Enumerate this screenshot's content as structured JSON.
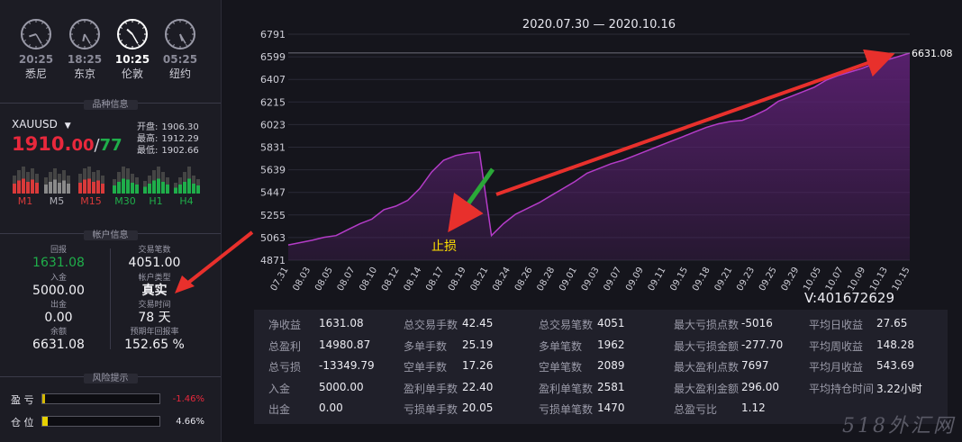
{
  "clocks": [
    {
      "time": "20:25",
      "city": "悉尼"
    },
    {
      "time": "18:25",
      "city": "东京"
    },
    {
      "time": "10:25",
      "city": "伦敦"
    },
    {
      "time": "05:25",
      "city": "纽约"
    }
  ],
  "sections": {
    "instrument": "品种信息",
    "account": "帐户信息",
    "risk": "风险提示"
  },
  "instrument": {
    "symbol": "XAUUSD",
    "bid_int": "1910.",
    "bid_frac": "00",
    "sep": "/",
    "ask": "77",
    "open_label": "开盘:",
    "open": "1906.30",
    "high_label": "最高:",
    "high": "1912.29",
    "low_label": "最低:",
    "low": "1902.66",
    "timeframes": [
      {
        "label": "M1",
        "color": "#d93a3a"
      },
      {
        "label": "M5",
        "color": "#8a8a8a"
      },
      {
        "label": "M15",
        "color": "#d93a3a"
      },
      {
        "label": "M30",
        "color": "#1fae4a"
      },
      {
        "label": "H1",
        "color": "#1fae4a"
      },
      {
        "label": "H4",
        "color": "#1fae4a"
      }
    ]
  },
  "account": {
    "return_label": "回报",
    "return": "1631.08",
    "deposit_label": "入金",
    "deposit": "5000.00",
    "withdraw_label": "出金",
    "withdraw": "0.00",
    "balance_label": "余额",
    "balance": "6631.08",
    "trades_label": "交易笔数",
    "trades": "4051.00",
    "type_label": "帐户类型",
    "type": "真实",
    "time_label": "交易时间",
    "time": "78 天",
    "annual_label": "预期年回报率",
    "annual": "152.65 %"
  },
  "risk": {
    "pnl_label": "盈 亏",
    "pnl_value": "-1.46%",
    "pnl_fill": 0.02,
    "position_label": "仓 位",
    "position_value": "4.66%",
    "position_fill": 0.047
  },
  "chart_data": {
    "type": "area",
    "title": "2020.07.30 — 2020.10.16",
    "yticks": [
      4871,
      5063,
      5255,
      5447,
      5639,
      5831,
      6023,
      6215,
      6407,
      6599,
      6791
    ],
    "ylim": [
      4871,
      6791
    ],
    "xticks": [
      "07.31",
      "08.03",
      "08.05",
      "08.07",
      "08.10",
      "08.12",
      "08.14",
      "08.17",
      "08.19",
      "08.21",
      "08.24",
      "08.26",
      "08.28",
      "09.01",
      "09.03",
      "09.07",
      "09.09",
      "09.11",
      "09.15",
      "09.18",
      "09.21",
      "09.23",
      "09.25",
      "09.29",
      "10.05",
      "10.07",
      "10.09",
      "10.13",
      "10.15"
    ],
    "values": [
      5000,
      5020,
      5040,
      5065,
      5080,
      5130,
      5180,
      5220,
      5300,
      5330,
      5380,
      5480,
      5620,
      5720,
      5760,
      5780,
      5790,
      5080,
      5180,
      5260,
      5310,
      5360,
      5420,
      5480,
      5540,
      5610,
      5650,
      5690,
      5720,
      5760,
      5800,
      5840,
      5880,
      5920,
      5960,
      6000,
      6030,
      6050,
      6060,
      6100,
      6150,
      6220,
      6260,
      6300,
      6340,
      6400,
      6440,
      6470,
      6500,
      6540,
      6570,
      6600,
      6631.08
    ],
    "last_label": "6631.08",
    "annotation": "止损",
    "line_color": "#b43cc8",
    "fill_color": "#5a2070"
  },
  "vid": "V:401672629",
  "stats": [
    [
      [
        "净收益",
        "1631.08"
      ],
      [
        "总盈利",
        "14980.87"
      ],
      [
        "总亏损",
        "-13349.79"
      ],
      [
        "入金",
        "5000.00"
      ],
      [
        "出金",
        "0.00"
      ]
    ],
    [
      [
        "总交易手数",
        "42.45"
      ],
      [
        "多单手数",
        "25.19"
      ],
      [
        "空单手数",
        "17.26"
      ],
      [
        "盈利单手数",
        "22.40"
      ],
      [
        "亏损单手数",
        "20.05"
      ]
    ],
    [
      [
        "总交易笔数",
        "4051"
      ],
      [
        "多单笔数",
        "1962"
      ],
      [
        "空单笔数",
        "2089"
      ],
      [
        "盈利单笔数",
        "2581"
      ],
      [
        "亏损单笔数",
        "1470"
      ]
    ],
    [
      [
        "最大亏损点数",
        "-5016"
      ],
      [
        "最大亏损金额",
        "-277.70"
      ],
      [
        "最大盈利点数",
        "7697"
      ],
      [
        "最大盈利金额",
        "296.00"
      ],
      [
        "总盈亏比",
        "1.12"
      ]
    ],
    [
      [
        "平均日收益",
        "27.65"
      ],
      [
        "平均周收益",
        "148.28"
      ],
      [
        "平均月收益",
        "543.69"
      ],
      [
        "平均持仓时间",
        "3.22小时"
      ]
    ]
  ],
  "watermark": "518外汇网"
}
